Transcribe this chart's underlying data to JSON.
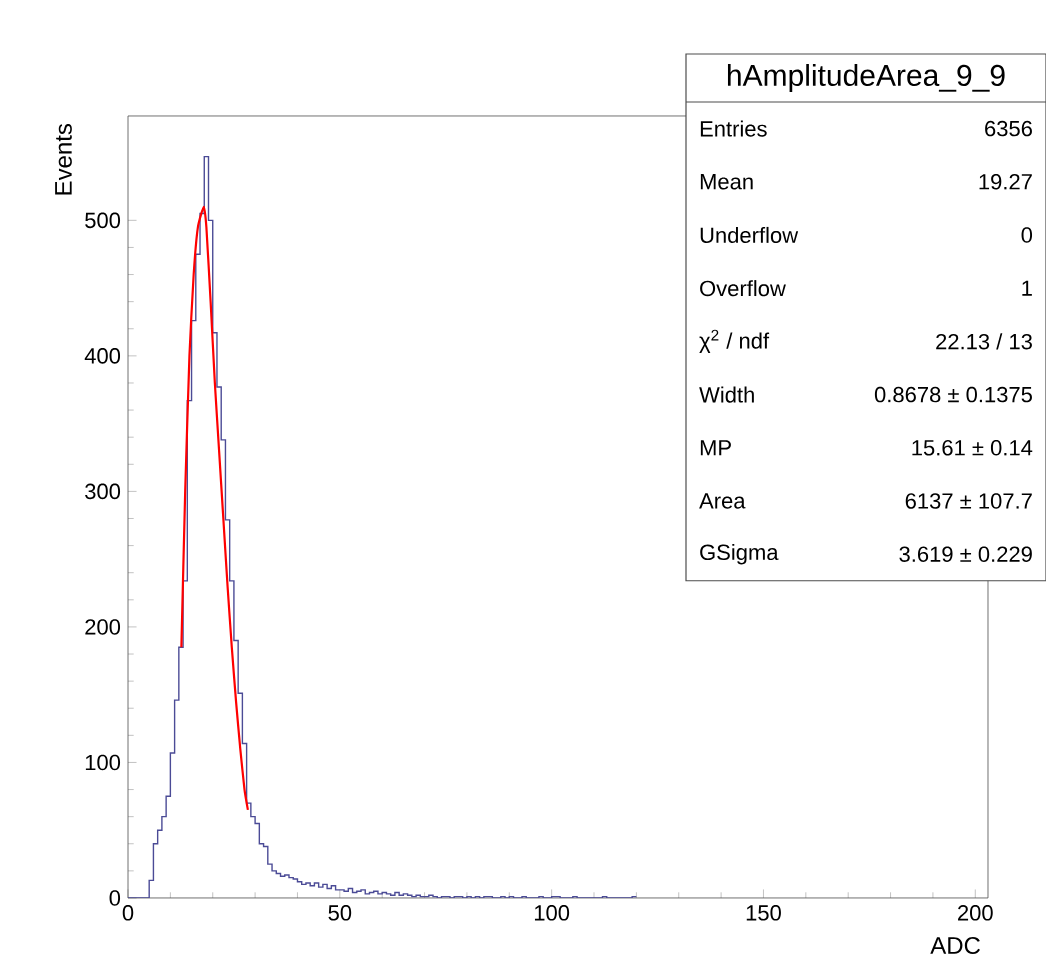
{
  "chart_data": {
    "type": "histogram",
    "xlabel": "ADC",
    "ylabel": "Events",
    "xlim": [
      0,
      203
    ],
    "ylim": [
      0,
      577
    ],
    "xticks": [
      0,
      50,
      100,
      150,
      200
    ],
    "yticks": [
      0,
      100,
      200,
      300,
      400,
      500
    ],
    "series": [
      {
        "type": "histogram",
        "color": "#4b4b96",
        "bins": [
          0,
          1,
          2,
          3,
          4,
          5,
          6,
          7,
          8,
          9,
          10,
          11,
          12,
          13,
          14,
          15,
          16,
          17,
          18,
          19,
          20,
          21,
          22,
          23,
          24,
          25,
          26,
          27,
          28,
          29,
          30,
          31,
          32,
          33,
          34,
          35,
          36,
          37,
          38,
          39,
          40,
          41,
          42,
          43,
          44,
          45,
          46,
          47,
          48,
          49,
          50,
          51,
          52,
          53,
          54,
          55,
          56,
          57,
          58,
          59,
          60,
          61,
          62,
          63,
          64,
          65,
          66,
          67,
          68,
          69,
          70,
          71,
          72,
          73,
          74,
          75,
          76,
          77,
          78,
          79,
          80,
          81,
          82,
          83,
          84,
          85,
          86,
          87,
          88,
          89,
          90,
          91,
          92,
          93,
          94,
          95,
          96,
          97,
          98,
          99,
          100,
          101,
          102,
          103,
          104,
          105,
          106,
          107,
          108,
          109,
          110,
          111,
          112,
          113,
          114,
          115,
          116,
          117,
          118,
          119,
          120
        ],
        "values": [
          0,
          0,
          0,
          0,
          0,
          13,
          40,
          50,
          60,
          75,
          107,
          146,
          185,
          234,
          367,
          426,
          475,
          505,
          547,
          500,
          417,
          377,
          338,
          279,
          234,
          190,
          151,
          114,
          70,
          60,
          55,
          40,
          38,
          25,
          20,
          18,
          16,
          17,
          15,
          14,
          12,
          10,
          11,
          9,
          11,
          8,
          10,
          7,
          9,
          6,
          6,
          5,
          7,
          4,
          5,
          6,
          3,
          4,
          5,
          3,
          4,
          3,
          2,
          4,
          2,
          3,
          2,
          1,
          2,
          1,
          1,
          2,
          1,
          0,
          1,
          1,
          0,
          1,
          1,
          0,
          1,
          0,
          1,
          0,
          1,
          1,
          0,
          0,
          1,
          0,
          1,
          0,
          0,
          1,
          0,
          0,
          0,
          1,
          0,
          0,
          1,
          1,
          0,
          0,
          0,
          1,
          0,
          0,
          0,
          0,
          0,
          0,
          1,
          0,
          0,
          0,
          0,
          0,
          0,
          1
        ]
      },
      {
        "type": "line",
        "color": "#ff0000",
        "x": [
          12.6,
          13.5,
          14.5,
          15.5,
          16.5,
          17.9,
          18.5,
          19.5,
          20.5,
          21.5,
          22.5,
          23.5,
          24.5,
          25.5,
          26.5,
          27.5,
          28.3
        ],
        "values": [
          185,
          300,
          400,
          460,
          495,
          510,
          495,
          440,
          380,
          330,
          280,
          230,
          185,
          145,
          110,
          80,
          65
        ]
      }
    ],
    "annotations": [
      "hAmplitudeArea_9_9",
      "Entries",
      "6356",
      "Mean",
      "19.27",
      "Underflow",
      "0",
      "Overflow",
      "1",
      "χ$^{2}$ / ndf",
      "22.13 / 13",
      "Width",
      "0.8678 ± 0.1375",
      "MP",
      "15.61 ± 0.14",
      "Area",
      "6137 ± 107.7",
      "GSigma",
      "3.619 ± 0.229"
    ]
  }
}
